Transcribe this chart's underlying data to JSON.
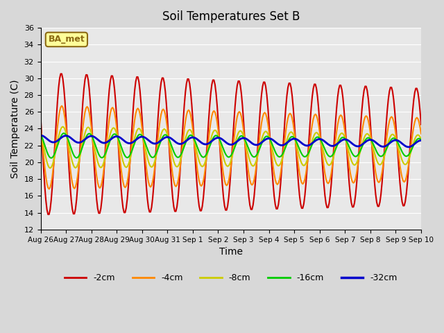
{
  "title": "Soil Temperatures Set B",
  "xlabel": "Time",
  "ylabel": "Soil Temperature (C)",
  "ylim": [
    12,
    36
  ],
  "yticks": [
    12,
    14,
    16,
    18,
    20,
    22,
    24,
    26,
    28,
    30,
    32,
    34,
    36
  ],
  "annotation_text": "BA_met",
  "annotation_bg": "#ffff99",
  "annotation_border": "#8b6914",
  "colors": {
    "-2cm": "#cc0000",
    "-4cm": "#ff8800",
    "-8cm": "#cccc00",
    "-16cm": "#00cc00",
    "-32cm": "#0000cc"
  },
  "line_widths": {
    "-2cm": 1.5,
    "-4cm": 1.5,
    "-8cm": 1.5,
    "-16cm": 1.5,
    "-32cm": 2.0
  },
  "x_tick_labels": [
    "Aug 26",
    "Aug 27",
    "Aug 28",
    "Aug 29",
    "Aug 30",
    "Aug 31",
    "Sep 1",
    "Sep 2",
    "Sep 3",
    "Sep 4",
    "Sep 5",
    "Sep 6",
    "Sep 7",
    "Sep 8",
    "Sep 9",
    "Sep 10"
  ],
  "num_days": 15,
  "series_labels": [
    "-2cm",
    "-4cm",
    "-8cm",
    "-16cm",
    "-32cm"
  ]
}
